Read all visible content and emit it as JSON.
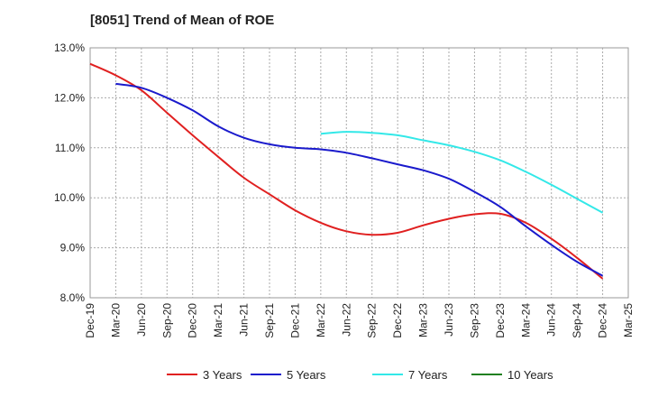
{
  "chart_data": {
    "type": "line",
    "title": "[8051]  Trend of Mean of ROE",
    "xlabel": "",
    "ylabel": "",
    "x": [
      "Dec-19",
      "Mar-20",
      "Jun-20",
      "Sep-20",
      "Dec-20",
      "Mar-21",
      "Jun-21",
      "Sep-21",
      "Dec-21",
      "Mar-22",
      "Jun-22",
      "Sep-22",
      "Dec-22",
      "Mar-23",
      "Jun-23",
      "Sep-23",
      "Dec-23",
      "Mar-24",
      "Jun-24",
      "Sep-24",
      "Dec-24",
      "Mar-25"
    ],
    "ylim": [
      8.0,
      13.0
    ],
    "yticks": [
      8.0,
      9.0,
      10.0,
      11.0,
      12.0,
      13.0
    ],
    "ytick_labels": [
      "8.0%",
      "9.0%",
      "10.0%",
      "11.0%",
      "12.0%",
      "13.0%"
    ],
    "grid": "dotted",
    "legend_position": "bottom",
    "series": [
      {
        "name": "3 Years",
        "color": "#e02020",
        "values": [
          12.68,
          12.45,
          12.15,
          11.7,
          11.25,
          10.82,
          10.4,
          10.07,
          9.75,
          9.5,
          9.33,
          9.26,
          9.3,
          9.45,
          9.58,
          9.67,
          9.68,
          9.5,
          9.18,
          8.8,
          8.38,
          null
        ]
      },
      {
        "name": "5 Years",
        "color": "#1a1acc",
        "values": [
          null,
          12.28,
          12.2,
          12.0,
          11.75,
          11.43,
          11.2,
          11.07,
          11.0,
          10.97,
          10.9,
          10.79,
          10.67,
          10.55,
          10.38,
          10.12,
          9.82,
          9.43,
          9.06,
          8.72,
          8.44,
          null
        ]
      },
      {
        "name": "7 Years",
        "color": "#33e8e8",
        "values": [
          null,
          null,
          null,
          null,
          null,
          null,
          null,
          null,
          null,
          11.28,
          11.32,
          11.3,
          11.25,
          11.15,
          11.05,
          10.92,
          10.75,
          10.52,
          10.26,
          9.98,
          9.7,
          null
        ]
      },
      {
        "name": "10 Years",
        "color": "#208020",
        "values": [
          null,
          null,
          null,
          null,
          null,
          null,
          null,
          null,
          null,
          null,
          null,
          null,
          null,
          null,
          null,
          null,
          null,
          null,
          null,
          null,
          null,
          null
        ]
      }
    ]
  }
}
